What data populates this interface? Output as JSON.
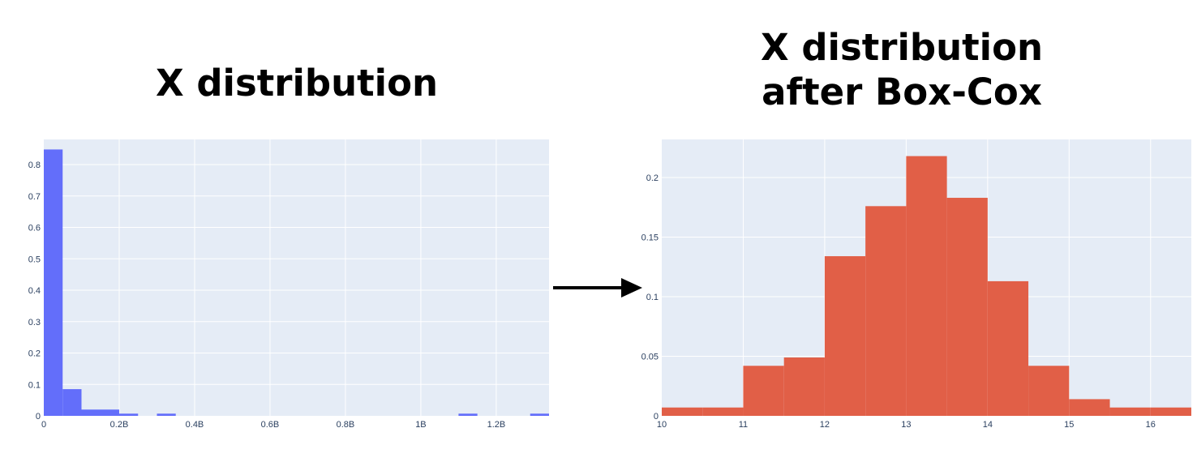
{
  "titles": {
    "left": "X distribution",
    "right_line1": "X distribution",
    "right_line2": "after Box-Cox"
  },
  "colors": {
    "plot_bg": "#e5ecf6",
    "grid": "#ffffff",
    "left_bars": "#636efa",
    "right_bars": "#e15f47",
    "arrow": "#000000"
  },
  "arrow_icon": "right-arrow-icon",
  "chart_data": [
    {
      "type": "bar",
      "title": "X distribution",
      "histogram": true,
      "x_tick_labels": [
        "0",
        "0.2B",
        "0.4B",
        "0.6B",
        "0.8B",
        "1B",
        "1.2B"
      ],
      "x_ticks": [
        0,
        200000000,
        400000000,
        600000000,
        800000000,
        1000000000,
        1200000000
      ],
      "y_ticks": [
        0,
        0.1,
        0.2,
        0.3,
        0.4,
        0.5,
        0.6,
        0.7,
        0.8
      ],
      "y_tick_labels": [
        "0",
        "0.1",
        "0.2",
        "0.3",
        "0.4",
        "0.5",
        "0.6",
        "0.7",
        "0.8"
      ],
      "xlim": [
        0,
        1340000000
      ],
      "ylim": [
        0,
        0.88
      ],
      "bins": [
        {
          "x0": 0,
          "x1": 50000000,
          "value": 0.848
        },
        {
          "x0": 50000000,
          "x1": 100000000,
          "value": 0.085
        },
        {
          "x0": 100000000,
          "x1": 200000000,
          "value": 0.02
        },
        {
          "x0": 200000000,
          "x1": 250000000,
          "value": 0.007
        },
        {
          "x0": 300000000,
          "x1": 350000000,
          "value": 0.007
        },
        {
          "x0": 1100000000,
          "x1": 1150000000,
          "value": 0.007
        },
        {
          "x0": 1290000000,
          "x1": 1340000000,
          "value": 0.007
        }
      ],
      "grid": true,
      "legend": "none"
    },
    {
      "type": "bar",
      "title": "X distribution after Box-Cox",
      "histogram": true,
      "x_ticks": [
        10,
        11,
        12,
        13,
        14,
        15,
        16
      ],
      "x_tick_labels": [
        "10",
        "11",
        "12",
        "13",
        "14",
        "15",
        "16"
      ],
      "y_ticks": [
        0,
        0.05,
        0.1,
        0.15,
        0.2
      ],
      "y_tick_labels": [
        "0",
        "0.05",
        "0.1",
        "0.15",
        "0.2"
      ],
      "xlim": [
        10,
        16.5
      ],
      "ylim": [
        0,
        0.232
      ],
      "bins": [
        {
          "x0": 10,
          "x1": 10.5,
          "value": 0.007
        },
        {
          "x0": 10.5,
          "x1": 11,
          "value": 0.007
        },
        {
          "x0": 11,
          "x1": 11.5,
          "value": 0.042
        },
        {
          "x0": 11.5,
          "x1": 12,
          "value": 0.049
        },
        {
          "x0": 12,
          "x1": 12.5,
          "value": 0.134
        },
        {
          "x0": 12.5,
          "x1": 13,
          "value": 0.176
        },
        {
          "x0": 13,
          "x1": 13.5,
          "value": 0.218
        },
        {
          "x0": 13.5,
          "x1": 14,
          "value": 0.183
        },
        {
          "x0": 14,
          "x1": 14.5,
          "value": 0.113
        },
        {
          "x0": 14.5,
          "x1": 15,
          "value": 0.042
        },
        {
          "x0": 15,
          "x1": 15.5,
          "value": 0.014
        },
        {
          "x0": 15.5,
          "x1": 16,
          "value": 0.007
        },
        {
          "x0": 16,
          "x1": 16.5,
          "value": 0.007
        }
      ],
      "grid": true,
      "legend": "none"
    }
  ]
}
